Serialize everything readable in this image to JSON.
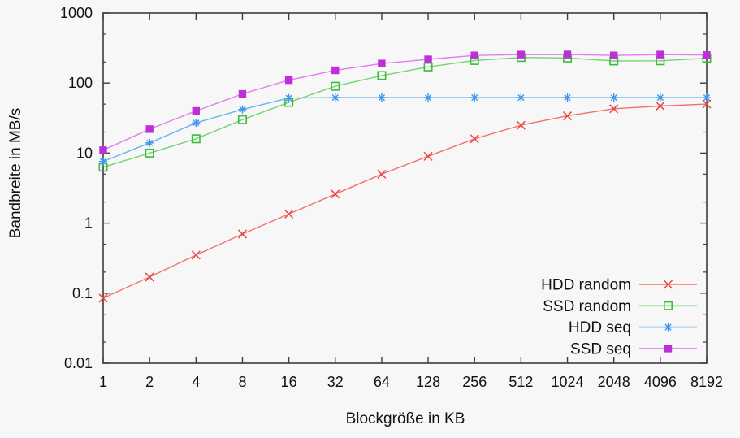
{
  "page": {
    "background": "#f7f7f7",
    "axis_color": "#3c3c3c",
    "text_color": "#111111"
  },
  "chart_data": {
    "type": "line",
    "title": "",
    "xlabel": "Blockgröße in KB",
    "ylabel": "Bandbreite in MB/s",
    "x_scale": "log2",
    "y_scale": "log10",
    "grid": false,
    "legend_position": "inside-bottom-right",
    "x": [
      1,
      2,
      4,
      8,
      16,
      32,
      64,
      128,
      256,
      512,
      1024,
      2048,
      4096,
      8192
    ],
    "x_tick_labels": [
      "1",
      "2",
      "4",
      "8",
      "16",
      "32",
      "64",
      "128",
      "256",
      "512",
      "1024",
      "2048",
      "4096",
      "8192"
    ],
    "xlim": [
      1,
      8192
    ],
    "y_ticks": [
      0.01,
      0.1,
      1,
      10,
      100,
      1000
    ],
    "y_tick_labels": [
      "0.01",
      "0.1",
      "1",
      "10",
      "100",
      "1000"
    ],
    "y_minor_ticks": [
      0.02,
      0.05,
      0.2,
      0.5,
      2,
      5,
      20,
      50,
      200,
      500
    ],
    "ylim": [
      0.01,
      1000
    ],
    "series": [
      {
        "name": "HDD random",
        "marker": "cross",
        "marker_color": "#e84545",
        "line_color": "#f37070",
        "values": [
          0.085,
          0.17,
          0.35,
          0.7,
          1.35,
          2.6,
          5,
          9,
          16,
          25,
          34,
          43,
          47,
          50
        ]
      },
      {
        "name": "SSD random",
        "marker": "open-square",
        "marker_color": "#3bbd3b",
        "line_color": "#6fd66f",
        "values": [
          6.3,
          10,
          16,
          30,
          53,
          90,
          128,
          170,
          210,
          232,
          228,
          207,
          208,
          226
        ]
      },
      {
        "name": "HDD seq",
        "marker": "asterisk",
        "marker_color": "#3e97ea",
        "line_color": "#67b5f2",
        "values": [
          7.6,
          14,
          27,
          42,
          61,
          62,
          62,
          62,
          62,
          62,
          62,
          62,
          62,
          62
        ]
      },
      {
        "name": "SSD seq",
        "marker": "filled-square",
        "marker_color": "#bc30d5",
        "line_color": "#e47cf2",
        "values": [
          11,
          22,
          40,
          70,
          110,
          152,
          190,
          218,
          248,
          255,
          256,
          248,
          255,
          251
        ]
      }
    ]
  }
}
